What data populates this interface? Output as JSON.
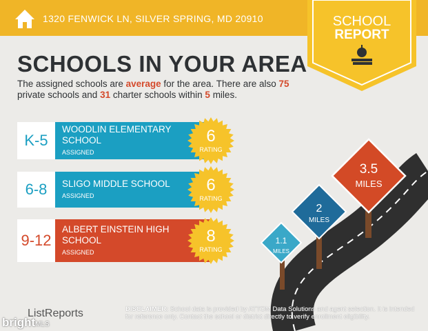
{
  "header": {
    "address": "1320 FENWICK LN, SILVER SPRING, MD 20910",
    "badge_line1": "SCHOOL",
    "badge_line2": "REPORT"
  },
  "title": "SCHOOLS IN YOUR AREA",
  "summary": {
    "parts": [
      "The assigned schools are ",
      "average",
      " for the area. There are also ",
      "75",
      "private schools and ",
      "31",
      " charter schools within ",
      "5",
      " miles."
    ]
  },
  "schools": [
    {
      "grades": "K-5",
      "name": "WOODLIN ELEMENTARY SCHOOL",
      "status": "ASSIGNED",
      "rating": "6",
      "rating_label": "RATING"
    },
    {
      "grades": "6-8",
      "name": "SLIGO MIDDLE SCHOOL",
      "status": "ASSIGNED",
      "rating": "6",
      "rating_label": "RATING"
    },
    {
      "grades": "9-12",
      "name": "ALBERT EINSTEIN HIGH SCHOOL",
      "status": "ASSIGNED",
      "rating": "8",
      "rating_label": "RATING"
    }
  ],
  "distances": [
    {
      "value": "1.1",
      "unit": "MILES"
    },
    {
      "value": "2",
      "unit": "MILES"
    },
    {
      "value": "3.5",
      "unit": "MILES"
    }
  ],
  "footer": {
    "logo": "ListReports",
    "disclaimer_label": "DISCLAIMER:",
    "disclaimer_text": "School data is provided by ATTOM Data Solutions and agent selection. It is intended for reference only. Contact the school or district directly to verify enrollment eligibility.",
    "watermark_1": "bright",
    "watermark_2": "MLS"
  }
}
